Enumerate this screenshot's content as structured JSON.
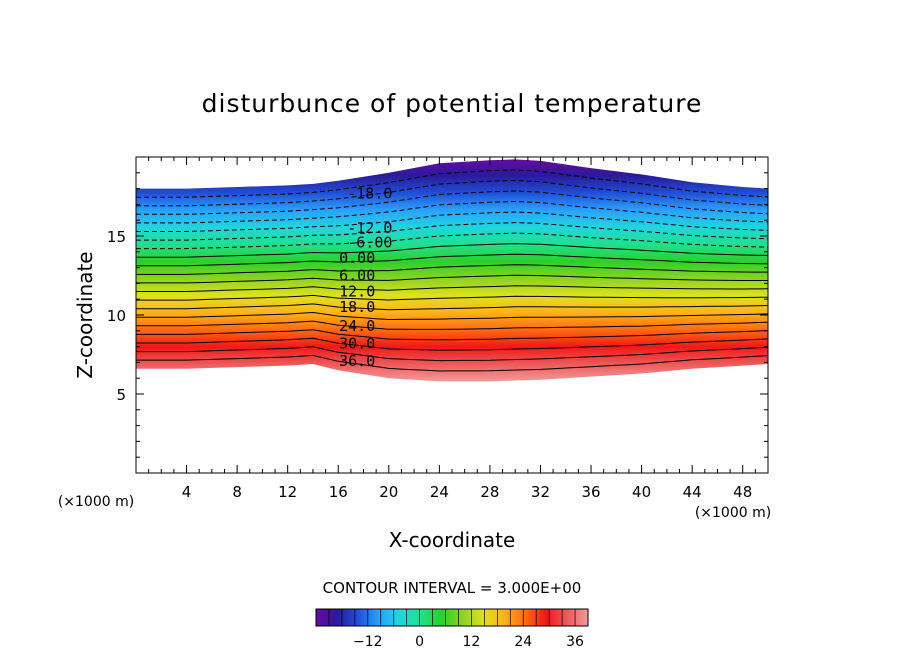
{
  "chart_data": {
    "type": "contour",
    "title": "disturbunce of potential temperature",
    "xlabel": "X-coordinate",
    "ylabel": "Z-coordinate",
    "x_unit": "(×1000 m)",
    "y_unit": "(×1000 m)",
    "xlim": [
      0,
      50
    ],
    "ylim": [
      0,
      20
    ],
    "x_ticks": [
      4,
      8,
      12,
      16,
      20,
      24,
      28,
      32,
      36,
      40,
      44,
      48
    ],
    "y_ticks": [
      5,
      10,
      15
    ],
    "contour_interval_text": "CONTOUR INTERVAL = 3.000E+00",
    "contour_interval": 3,
    "field_range": [
      -24,
      39
    ],
    "filled_region": {
      "x": [
        0,
        4,
        8,
        12,
        14,
        16,
        20,
        24,
        28,
        30,
        32,
        36,
        40,
        44,
        48,
        50
      ],
      "top": [
        18.0,
        18.0,
        18.1,
        18.2,
        18.3,
        18.5,
        19.0,
        19.6,
        19.8,
        19.85,
        19.75,
        19.3,
        18.9,
        18.4,
        18.1,
        18.0
      ],
      "bottom": [
        6.6,
        6.6,
        6.7,
        6.8,
        6.9,
        6.5,
        6.0,
        5.8,
        5.8,
        5.85,
        5.9,
        6.1,
        6.3,
        6.6,
        6.8,
        6.9
      ]
    },
    "contour_labels": [
      {
        "text": "-18.0",
        "value": -18,
        "x": 18.5,
        "z": 17.7
      },
      {
        "text": "-12.0",
        "value": -12,
        "x": 18.5,
        "z": 15.5
      },
      {
        "text": "-6.00",
        "value": -6,
        "x": 18.5,
        "z": 14.6
      },
      {
        "text": "0.00",
        "value": 0,
        "x": 17.5,
        "z": 13.6
      },
      {
        "text": "6.00",
        "value": 6,
        "x": 17.5,
        "z": 12.5
      },
      {
        "text": "12.0",
        "value": 12,
        "x": 17.5,
        "z": 11.5
      },
      {
        "text": "18.0",
        "value": 18,
        "x": 17.5,
        "z": 10.5
      },
      {
        "text": "24.0",
        "value": 24,
        "x": 17.5,
        "z": 9.3
      },
      {
        "text": "30.0",
        "value": 30,
        "x": 17.5,
        "z": 8.2
      },
      {
        "text": "36.0",
        "value": 36,
        "x": 17.5,
        "z": 7.1
      }
    ],
    "colorbar": {
      "ticks": [
        -12,
        0,
        12,
        24,
        36
      ],
      "tick_labels": [
        "−12",
        "0",
        "12",
        "24",
        "36"
      ],
      "range": [
        -24,
        39
      ]
    },
    "colormap": [
      "#6a0aa0",
      "#2a1a9a",
      "#1f4fd6",
      "#2aa0ff",
      "#1fd6e0",
      "#20e090",
      "#2ad02a",
      "#8ad420",
      "#e0e020",
      "#ffb21a",
      "#ff6a12",
      "#f01818",
      "#ee5a5a",
      "#f29a9a"
    ],
    "grid": false,
    "legend": "none"
  }
}
